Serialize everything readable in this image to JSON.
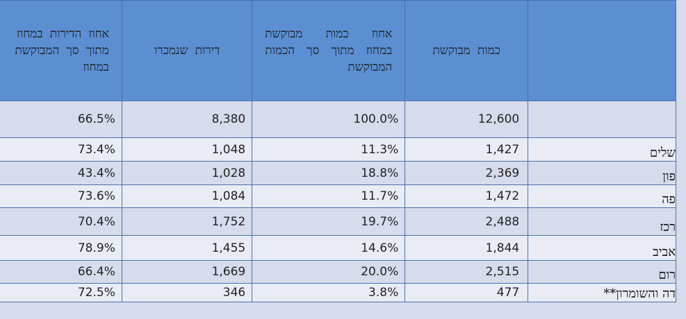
{
  "table": {
    "headers": {
      "pct_apartments_in_district": "אחוז הדירות במחוז מתוך סך המבוקשת במחוז",
      "apartments_sold": "דירות שנמכרו",
      "pct_requested_of_total": "אחוז כמות מבוקשת במחוז מתוך סך הכמות המבוקשת",
      "requested_quantity": "כמות מבוקשת",
      "district": ""
    },
    "rows": [
      {
        "district": "",
        "requested": "12,600",
        "pct_requested": "100.0%",
        "sold": "8,380",
        "pct_sold": "66.5%"
      },
      {
        "district": "שלים",
        "requested": "1,427",
        "pct_requested": "11.3%",
        "sold": "1,048",
        "pct_sold": "73.4%"
      },
      {
        "district": "פון",
        "requested": "2,369",
        "pct_requested": "18.8%",
        "sold": "1,028",
        "pct_sold": "43.4%"
      },
      {
        "district": "פה",
        "requested": "1,472",
        "pct_requested": "11.7%",
        "sold": "1,084",
        "pct_sold": "73.6%"
      },
      {
        "district": "רכז",
        "requested": "2,488",
        "pct_requested": "19.7%",
        "sold": "1,752",
        "pct_sold": "70.4%"
      },
      {
        "district": "אביב",
        "requested": "1,844",
        "pct_requested": "14.6%",
        "sold": "1,455",
        "pct_sold": "78.9%"
      },
      {
        "district": "רום",
        "requested": "2,515",
        "pct_requested": "20.0%",
        "sold": "1,669",
        "pct_sold": "66.4%"
      },
      {
        "district": "דה והשומרון**",
        "requested": "477",
        "pct_requested": "3.8%",
        "sold": "346",
        "pct_sold": "72.5%"
      }
    ]
  },
  "colors": {
    "header_bg": "#5b8fd2",
    "row_light": "#d6dcec",
    "row_lighter": "#e9ecf5",
    "border": "#4a6fa6"
  }
}
